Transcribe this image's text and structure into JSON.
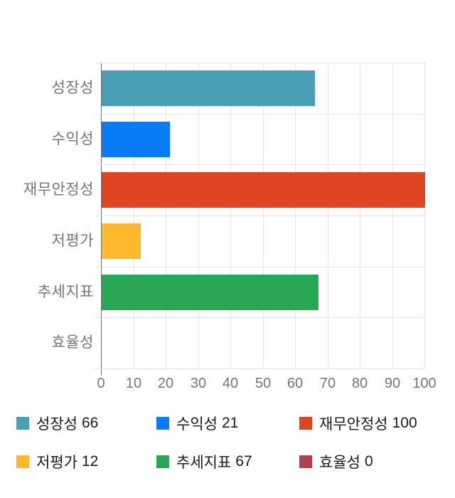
{
  "chart_data": {
    "type": "bar",
    "orientation": "horizontal",
    "title": "",
    "categories": [
      "성장성",
      "수익성",
      "재무안정성",
      "저평가",
      "추세지표",
      "효율성"
    ],
    "values": [
      66,
      21,
      100,
      12,
      67,
      0
    ],
    "colors": [
      "#4a9fb4",
      "#087bf7",
      "#df4423",
      "#fdb92e",
      "#2aa755",
      "#ad4150"
    ],
    "xlim": [
      0,
      100
    ],
    "x_ticks": [
      "0",
      "10",
      "20",
      "30",
      "40",
      "50",
      "60",
      "70",
      "80",
      "90",
      "100"
    ],
    "grid": true,
    "legend_position": "bottom",
    "legend": [
      {
        "label": "성장성",
        "value": "66",
        "color": "#4a9fb4"
      },
      {
        "label": "수익성",
        "value": "21",
        "color": "#087bf7"
      },
      {
        "label": "재무안정성",
        "value": "100",
        "color": "#df4423"
      },
      {
        "label": "저평가",
        "value": "12",
        "color": "#fdb92e"
      },
      {
        "label": "추세지표",
        "value": "67",
        "color": "#2aa755"
      },
      {
        "label": "효율성",
        "value": "0",
        "color": "#ad4150"
      }
    ]
  }
}
